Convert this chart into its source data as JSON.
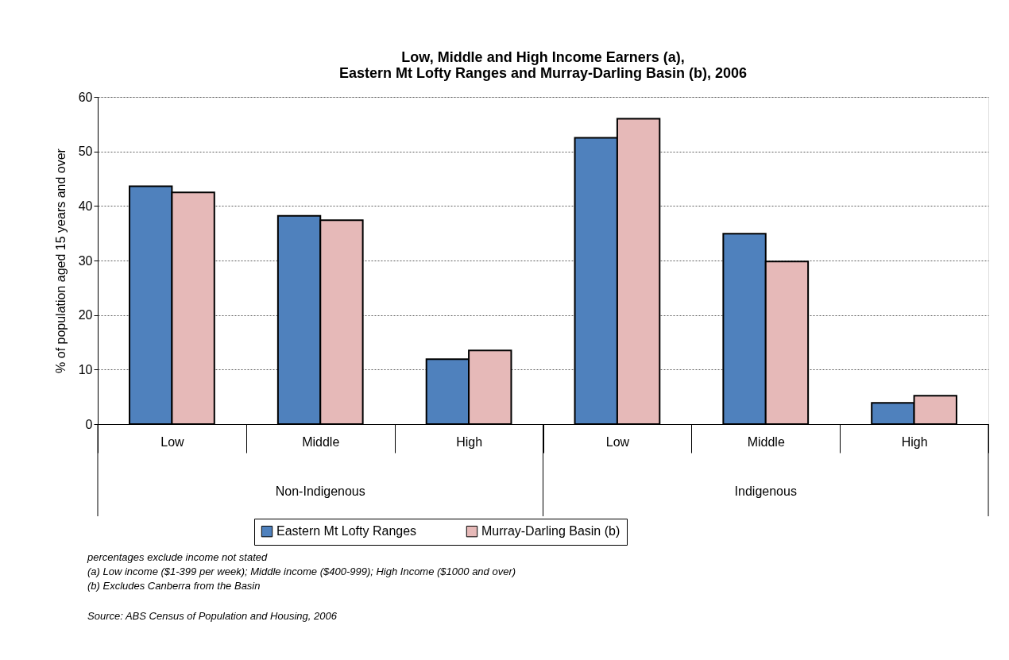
{
  "chart_data": {
    "type": "bar",
    "title": "Low, Middle and High Income Earners (a),\nEastern Mt Lofty Ranges and Murray-Darling Basin (b), 2006",
    "ylabel": "% of population aged 15 years and over",
    "categories": [
      "Low",
      "Middle",
      "High",
      "Low",
      "Middle",
      "High"
    ],
    "series": [
      {
        "name": "Eastern Mt Lofty Ranges",
        "color": "#4f81bd",
        "values": [
          43.6,
          38.2,
          11.9,
          52.5,
          34.9,
          3.9
        ]
      },
      {
        "name": "Murray-Darling Basin (b)",
        "color": "#e6b9b8",
        "values": [
          42.5,
          37.4,
          13.5,
          56.0,
          29.8,
          5.2
        ]
      }
    ],
    "ylim": [
      0,
      60
    ],
    "yticks": [
      0,
      10,
      20,
      30,
      40,
      50,
      60
    ],
    "grid": "y",
    "legend": "bottom",
    "annotations": [
      "Non-Indigenous",
      "Indigenous",
      "percentages exclude income not stated",
      "(a) Low income ($1-399 per week); Middle income ($400-999); High Income ($1000 and over)",
      "(b) Excludes Canberra from the Basin",
      "Source: ABS Census of Population and Housing, 2006"
    ]
  }
}
